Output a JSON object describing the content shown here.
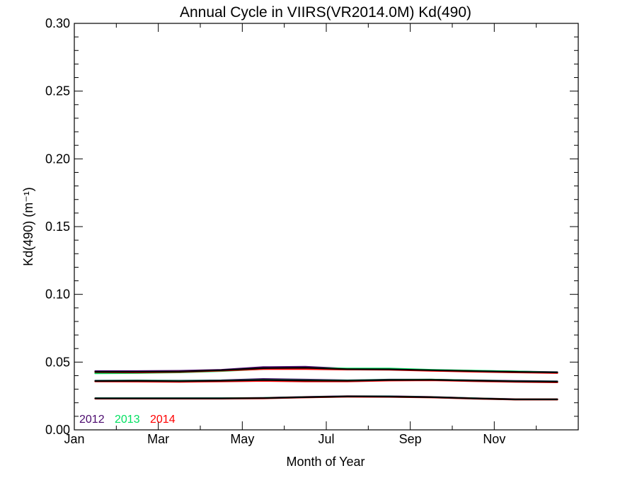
{
  "chart_data": {
    "type": "line",
    "title": "Annual Cycle in VIIRS(VR2014.0M) Kd(490)",
    "xlabel": "Month of Year",
    "ylabel": "Kd(490) (m⁻¹)",
    "xlim": [
      1,
      13
    ],
    "ylim": [
      0.0,
      0.3
    ],
    "x_ticks": [
      1,
      3,
      5,
      7,
      9,
      11
    ],
    "x_tick_labels": [
      "Jan",
      "Mar",
      "May",
      "Jul",
      "Sep",
      "Nov"
    ],
    "y_ticks": [
      0.0,
      0.05,
      0.1,
      0.15,
      0.2,
      0.25,
      0.3
    ],
    "y_tick_labels": [
      "0.00",
      "0.05",
      "0.10",
      "0.15",
      "0.20",
      "0.25",
      "0.30"
    ],
    "x": [
      1.5,
      2.5,
      3.5,
      4.5,
      5.5,
      6.5,
      7.5,
      8.5,
      9.5,
      10.5,
      11.5,
      12.5
    ],
    "legend_position": "bottom-left",
    "legend": [
      {
        "label": "2012",
        "color": "#4b0a6e"
      },
      {
        "label": "2013",
        "color": "#00e060"
      },
      {
        "label": "2014",
        "color": "#ff0000"
      }
    ],
    "series": [
      {
        "name": "2012",
        "color": "#4b0a6e",
        "group": "upper",
        "values": [
          0.0433,
          0.0433,
          0.0435,
          0.0442,
          0.0462,
          0.0465,
          0.045,
          0.0447,
          0.044,
          0.0435,
          0.043,
          0.0425
        ]
      },
      {
        "name": "2013",
        "color": "#00e060",
        "group": "upper",
        "values": [
          0.0418,
          0.042,
          0.0425,
          0.0435,
          0.045,
          0.0455,
          0.0452,
          0.0452,
          0.0442,
          0.0436,
          0.043,
          0.0423
        ]
      },
      {
        "name": "2014",
        "color": "#ff0000",
        "group": "upper",
        "values": [
          0.0427,
          0.0425,
          0.0428,
          0.0438,
          0.045,
          0.045,
          0.0446,
          0.0445,
          0.0437,
          0.043,
          0.0425,
          0.042
        ]
      },
      {
        "name": "",
        "color": "#000000",
        "group": "upper",
        "values": [
          0.0428,
          0.0428,
          0.043,
          0.044,
          0.0455,
          0.0458,
          0.0448,
          0.0447,
          0.044,
          0.0434,
          0.0428,
          0.0424
        ]
      },
      {
        "name": "2012",
        "color": "#4b0a6e",
        "group": "middle",
        "values": [
          0.0362,
          0.0364,
          0.0362,
          0.0365,
          0.0375,
          0.037,
          0.0365,
          0.037,
          0.037,
          0.0365,
          0.036,
          0.0358
        ]
      },
      {
        "name": "2013",
        "color": "#00e060",
        "group": "middle",
        "values": [
          0.036,
          0.0362,
          0.036,
          0.0362,
          0.0368,
          0.0365,
          0.0363,
          0.0368,
          0.037,
          0.0364,
          0.0358,
          0.0355
        ]
      },
      {
        "name": "2014",
        "color": "#ff0000",
        "group": "middle",
        "values": [
          0.0358,
          0.0357,
          0.0355,
          0.0358,
          0.0362,
          0.0358,
          0.0358,
          0.0365,
          0.0367,
          0.036,
          0.0355,
          0.0352
        ]
      },
      {
        "name": "",
        "color": "#000000",
        "group": "middle",
        "values": [
          0.036,
          0.0361,
          0.0359,
          0.0362,
          0.0368,
          0.0364,
          0.0362,
          0.0368,
          0.0369,
          0.0363,
          0.0358,
          0.0355
        ]
      },
      {
        "name": "2012",
        "color": "#4b0a6e",
        "group": "lower",
        "values": [
          0.0233,
          0.0233,
          0.0233,
          0.0233,
          0.0235,
          0.0242,
          0.0248,
          0.0247,
          0.0242,
          0.0233,
          0.0226,
          0.0226
        ]
      },
      {
        "name": "2013",
        "color": "#00e060",
        "group": "lower",
        "values": [
          0.0232,
          0.0232,
          0.0232,
          0.0232,
          0.0234,
          0.0241,
          0.0246,
          0.0245,
          0.0241,
          0.0232,
          0.0225,
          0.0225
        ]
      },
      {
        "name": "2014",
        "color": "#ff0000",
        "group": "lower",
        "values": [
          0.0231,
          0.0231,
          0.0231,
          0.0231,
          0.0233,
          0.024,
          0.0245,
          0.0244,
          0.024,
          0.0231,
          0.0224,
          0.0224
        ]
      },
      {
        "name": "",
        "color": "#000000",
        "group": "lower",
        "values": [
          0.0232,
          0.0232,
          0.0232,
          0.0232,
          0.0234,
          0.0241,
          0.0246,
          0.0245,
          0.0241,
          0.0232,
          0.0225,
          0.0225
        ]
      }
    ]
  }
}
